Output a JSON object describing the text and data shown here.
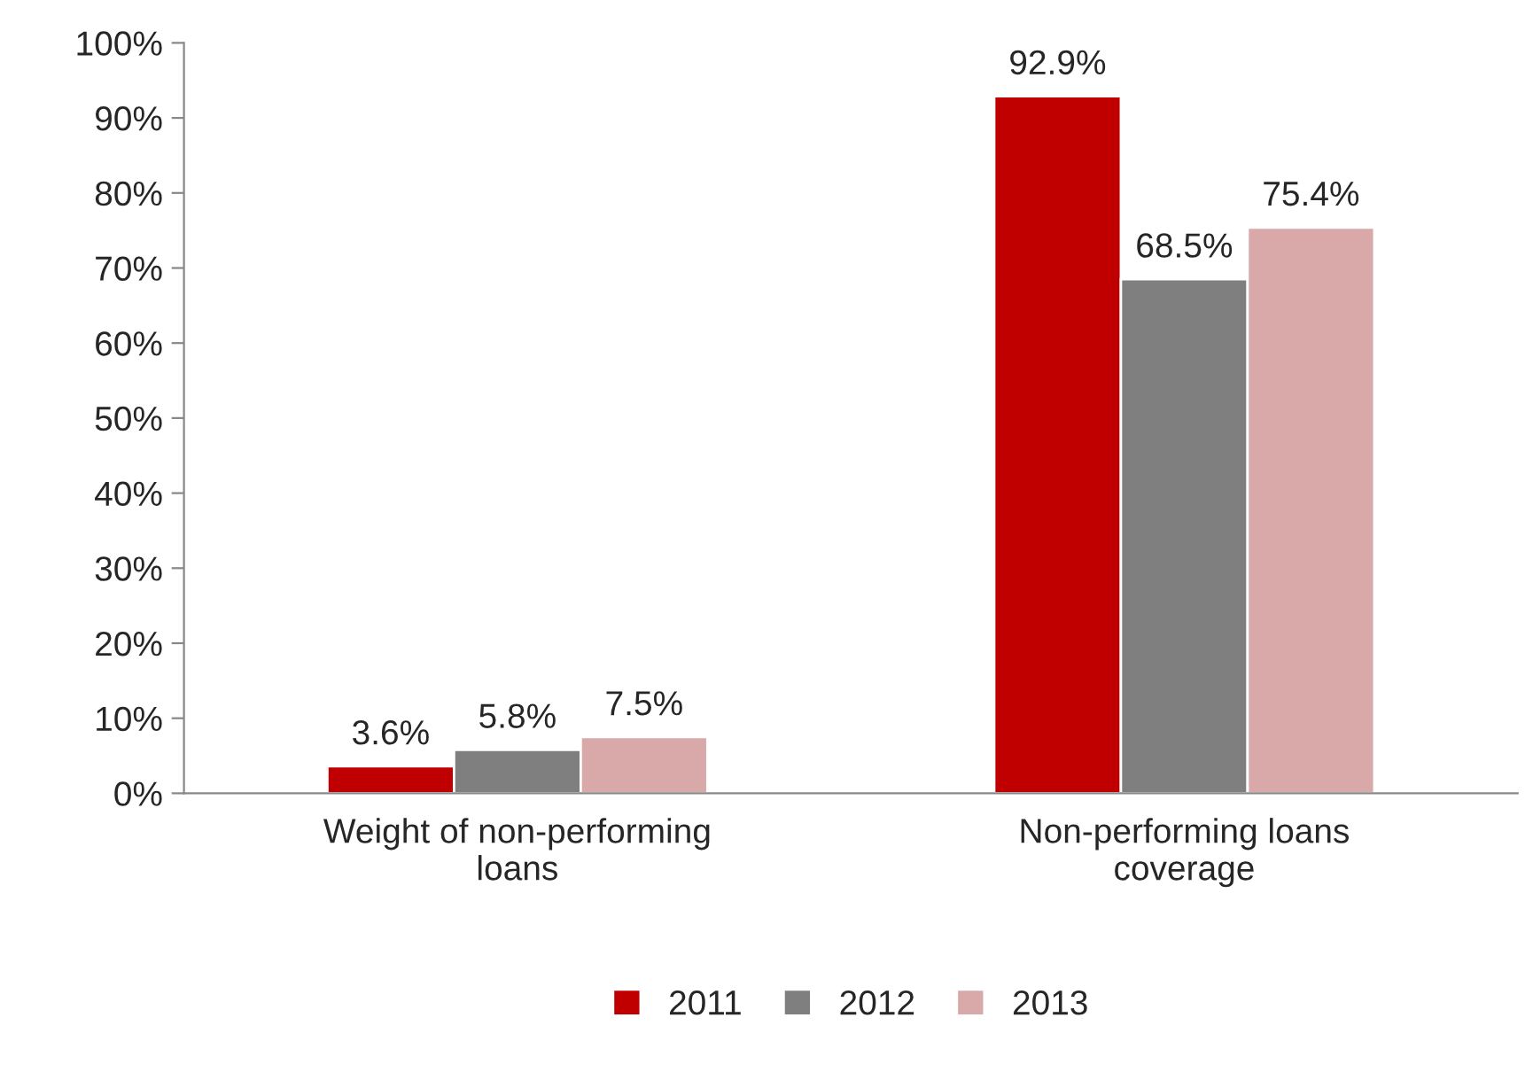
{
  "chart_data": {
    "type": "bar",
    "categories": [
      "Weight of non-performing\nloans",
      "Non-performing loans\ncoverage"
    ],
    "series": [
      {
        "name": "2011",
        "color": "#c00000",
        "values": [
          3.6,
          92.9
        ],
        "value_labels": [
          "3.6%",
          "92.9%"
        ]
      },
      {
        "name": "2012",
        "color": "#7f7f7f",
        "values": [
          5.8,
          68.5
        ],
        "value_labels": [
          "5.8%",
          "68.5%"
        ]
      },
      {
        "name": "2013",
        "color": "#d9a8a8",
        "values": [
          7.5,
          75.4
        ],
        "value_labels": [
          "7.5%",
          "75.4%"
        ]
      }
    ],
    "ylim": [
      0,
      100
    ],
    "yticks": [
      {
        "value": 0,
        "label": "0%"
      },
      {
        "value": 10,
        "label": "10%"
      },
      {
        "value": 20,
        "label": "20%"
      },
      {
        "value": 30,
        "label": "30%"
      },
      {
        "value": 40,
        "label": "40%"
      },
      {
        "value": 50,
        "label": "50%"
      },
      {
        "value": 60,
        "label": "60%"
      },
      {
        "value": 70,
        "label": "70%"
      },
      {
        "value": 80,
        "label": "80%"
      },
      {
        "value": 90,
        "label": "90%"
      },
      {
        "value": 100,
        "label": "100%"
      }
    ],
    "grid": false,
    "legend": "bottom"
  }
}
